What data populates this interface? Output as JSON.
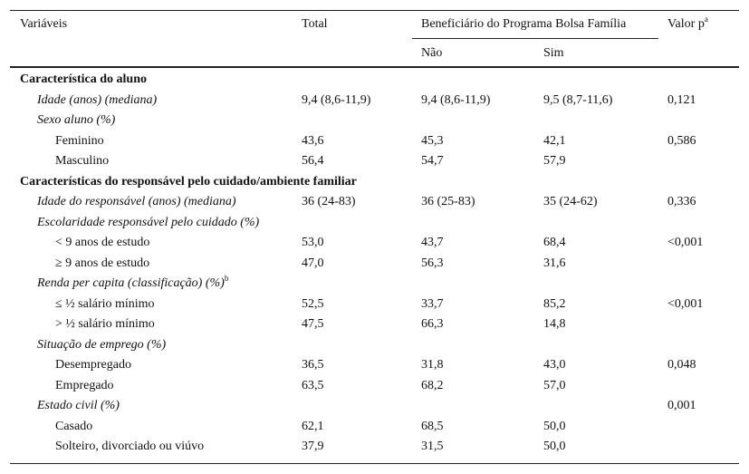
{
  "header": {
    "columns": [
      "Variáveis",
      "Total"
    ],
    "group": "Beneficiário do Programa Bolsa Família",
    "subcolumns": [
      "Não",
      "Sim"
    ],
    "last": {
      "label": "Valor p",
      "note": "a"
    }
  },
  "table": {
    "sections": [
      {
        "title": "Característica do aluno",
        "items": [
          {
            "label": "Idade (anos) (mediana)",
            "cells": [
              "9,4 (8,6-11,9)",
              "9,4 (8,6-11,9)",
              "9,5 (8,7-11,6)",
              "0,121"
            ]
          },
          {
            "label": "Sexo aluno (%)",
            "rows": [
              {
                "label": "Feminino",
                "cells": [
                  "43,6",
                  "45,3",
                  "42,1",
                  "0,586"
                ]
              },
              {
                "label": "Masculino",
                "cells": [
                  "56,4",
                  "54,7",
                  "57,9",
                  null
                ]
              }
            ]
          }
        ]
      },
      {
        "title": "Características do responsável pelo cuidado/ambiente familiar",
        "items": [
          {
            "label": "Idade do responsável (anos) (mediana)",
            "cells": [
              "36 (24-83)",
              "36 (25-83)",
              "35 (24-62)",
              "0,336"
            ]
          },
          {
            "label": "Escolaridade responsável pelo cuidado (%)",
            "rows": [
              {
                "label": "< 9 anos de estudo",
                "cells": [
                  "53,0",
                  "43,7",
                  "68,4",
                  "<0,001"
                ]
              },
              {
                "label": "≥ 9 anos de estudo",
                "cells": [
                  "47,0",
                  "56,3",
                  "31,6",
                  null
                ]
              }
            ]
          },
          {
            "label": "Renda per capita (classificação) (%)",
            "note": "b",
            "rows": [
              {
                "label": "≤ ½ salário mínimo",
                "cells": [
                  "52,5",
                  "33,7",
                  "85,2",
                  "<0,001"
                ]
              },
              {
                "label": "> ½ salário mínimo",
                "cells": [
                  "47,5",
                  "66,3",
                  "14,8",
                  null
                ]
              }
            ]
          },
          {
            "label": "Situação de emprego (%)",
            "rows": [
              {
                "label": "Desempregado",
                "cells": [
                  "36,5",
                  "31,8",
                  "43,0",
                  "0,048"
                ]
              },
              {
                "label": "Empregado",
                "cells": [
                  "63,5",
                  "68,2",
                  "57,0",
                  null
                ]
              }
            ]
          },
          {
            "label": "Estado civil (%)",
            "cells": [
              null,
              null,
              null,
              "0,001"
            ],
            "rows": [
              {
                "label": "Casado",
                "cells": [
                  "62,1",
                  "68,5",
                  "50,0",
                  null
                ]
              },
              {
                "label": "Solteiro, divorciado ou viúvo",
                "cells": [
                  "37,9",
                  "31,5",
                  "50,0",
                  null
                ]
              }
            ]
          }
        ]
      }
    ]
  }
}
